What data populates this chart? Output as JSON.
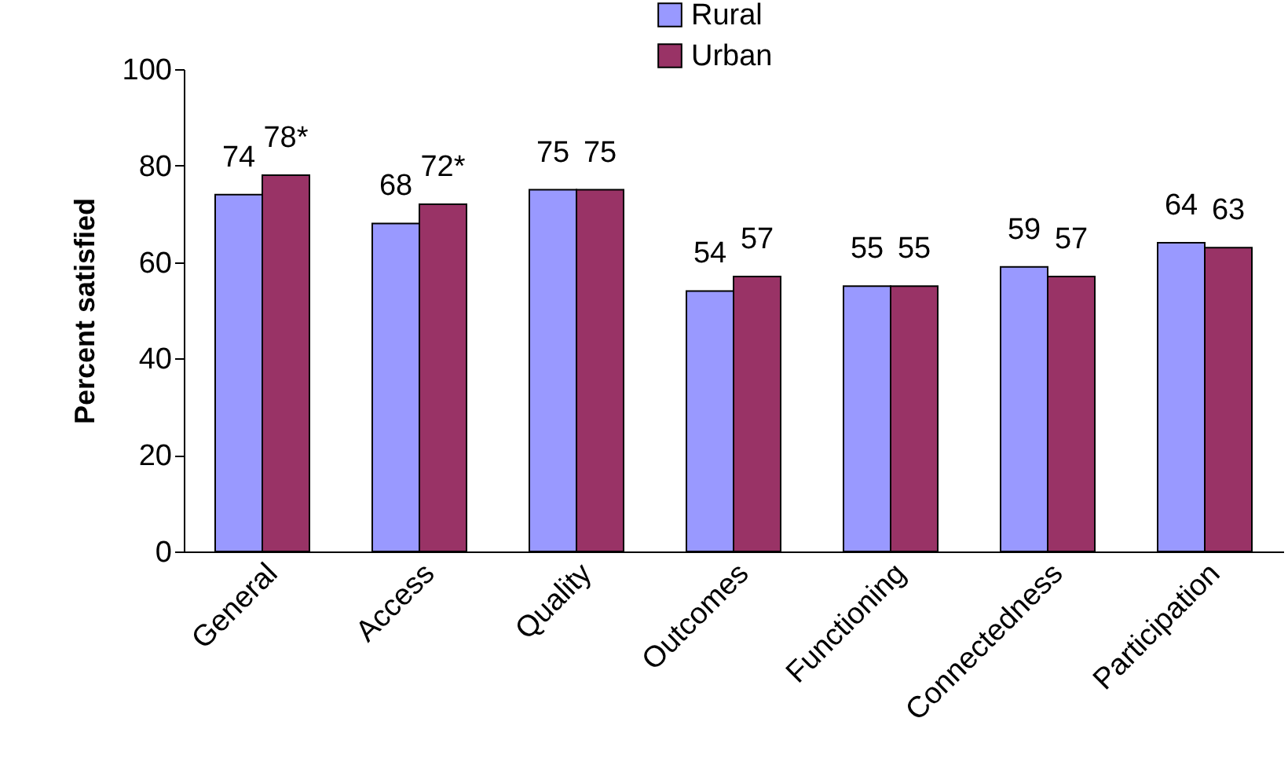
{
  "chart_data": {
    "type": "bar",
    "ylabel": "Percent satisfied",
    "categories": [
      "General",
      "Access",
      "Quality",
      "Outcomes",
      "Functioning",
      "Connectedness",
      "Participation"
    ],
    "series": [
      {
        "name": "Rural",
        "color": "#9999ff",
        "values": [
          74,
          68,
          75,
          54,
          55,
          59,
          64
        ],
        "value_labels": [
          "74",
          "68",
          "75",
          "54",
          "55",
          "59",
          "64"
        ]
      },
      {
        "name": "Urban",
        "color": "#993366",
        "values": [
          78,
          72,
          75,
          57,
          55,
          57,
          63
        ],
        "value_labels": [
          "78*",
          "72*",
          "75",
          "57",
          "55",
          "57",
          "63"
        ]
      }
    ],
    "ylim": [
      0,
      100
    ],
    "yticks": [
      0,
      20,
      40,
      60,
      80,
      100
    ],
    "legend": "top",
    "grid": false
  }
}
